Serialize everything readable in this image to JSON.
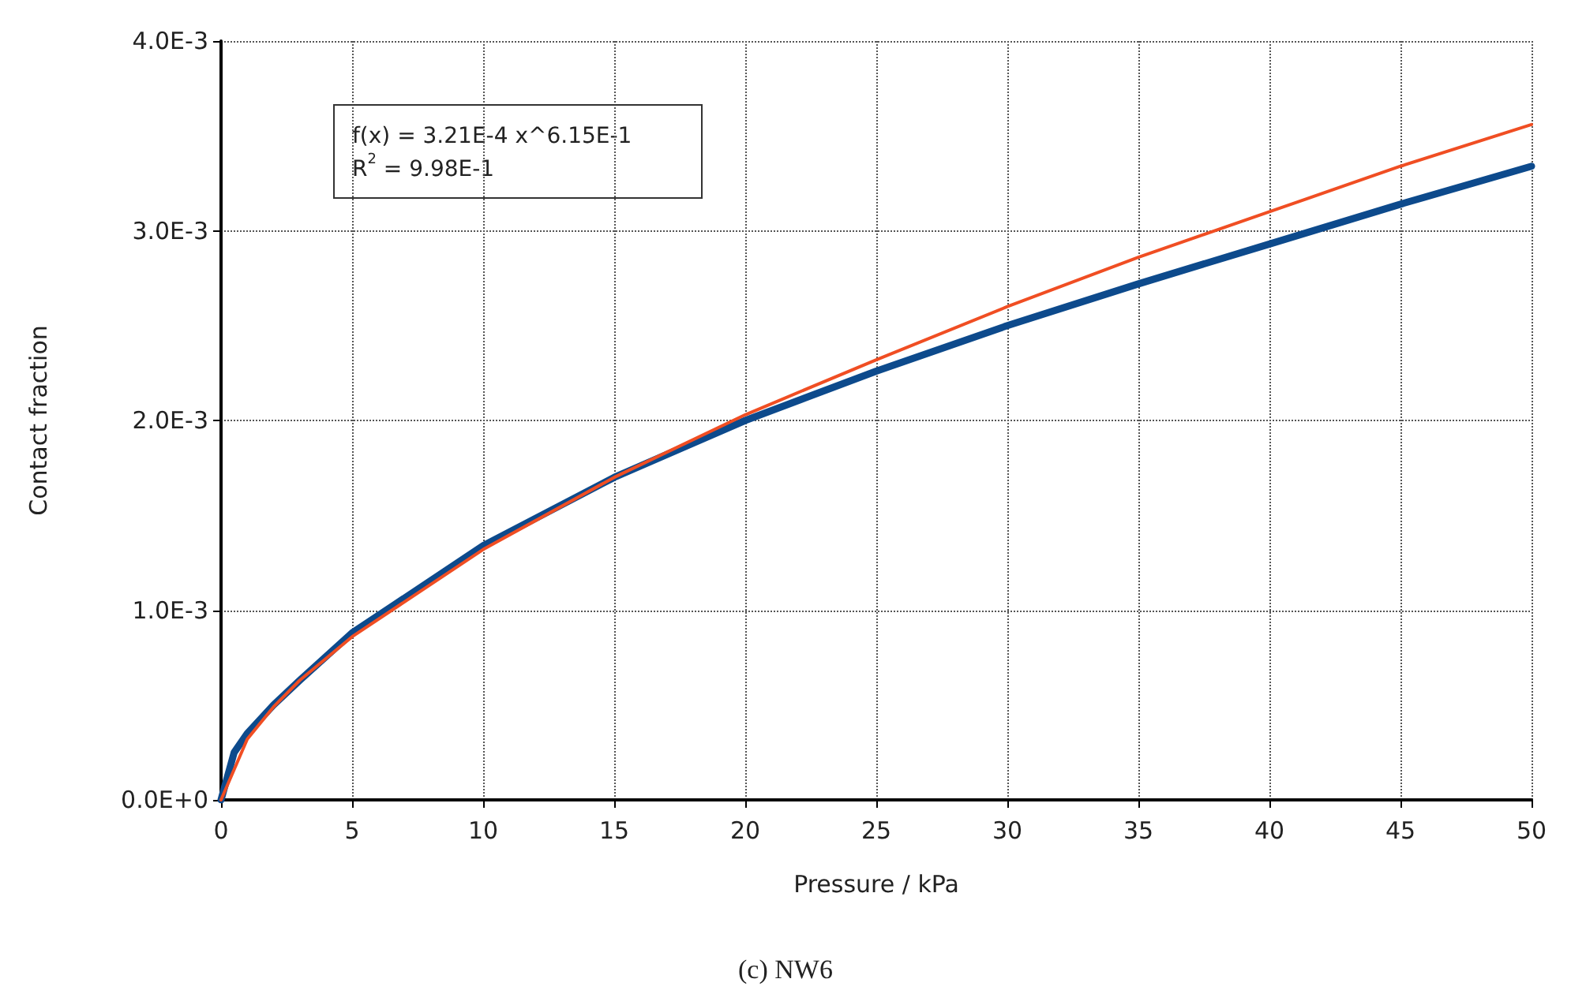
{
  "chart_data": {
    "type": "line",
    "xlabel": "Pressure / kPa",
    "ylabel": "Contact fraction",
    "xlim": [
      0,
      50
    ],
    "xticks": [
      0,
      5,
      10,
      15,
      20,
      25,
      30,
      35,
      40,
      45,
      50
    ],
    "ylim": [
      0,
      0.004
    ],
    "yticks": [
      {
        "value": 0,
        "label": "0.0E+0"
      },
      {
        "value": 0.001,
        "label": "1.0E-3"
      },
      {
        "value": 0.002,
        "label": "2.0E-3"
      },
      {
        "value": 0.003,
        "label": "3.0E-3"
      },
      {
        "value": 0.004,
        "label": "4.0E-3"
      }
    ],
    "grid": true,
    "marker": "none",
    "line_style": "solid",
    "series": [
      {
        "color": "#0d4a8c",
        "x": [
          0,
          0.5,
          1,
          2,
          3,
          5,
          10,
          15,
          20,
          25,
          30,
          35,
          40,
          45,
          50
        ],
        "values": [
          0,
          0.00025,
          0.00035,
          0.0005,
          0.00063,
          0.00088,
          0.00134,
          0.0017,
          0.002,
          0.00226,
          0.0025,
          0.00272,
          0.00293,
          0.00314,
          0.00334
        ]
      },
      {
        "color": "#f04e23",
        "x": [
          0,
          1,
          2,
          3,
          5,
          10,
          15,
          20,
          25,
          30,
          35,
          40,
          45,
          50
        ],
        "values": [
          0,
          0.00032,
          0.00049,
          0.00063,
          0.00086,
          0.00132,
          0.0017,
          0.00203,
          0.00232,
          0.0026,
          0.00286,
          0.0031,
          0.00334,
          0.00356
        ]
      }
    ],
    "annotations": [
      "f(x) = 3.21E-4 x^6.15E-1\nR$^{2}$ = 9.98E-1",
      "(c) NW6"
    ]
  }
}
